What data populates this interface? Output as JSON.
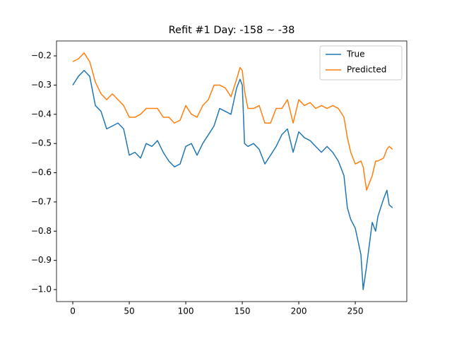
{
  "chart_data": {
    "type": "line",
    "title": "Refit #1 Day: -158 ~ -38",
    "x": [
      0,
      5,
      10,
      15,
      20,
      25,
      30,
      35,
      40,
      45,
      50,
      55,
      60,
      65,
      70,
      75,
      80,
      85,
      90,
      95,
      100,
      105,
      110,
      115,
      120,
      125,
      130,
      135,
      140,
      145,
      148,
      150,
      152,
      155,
      160,
      165,
      170,
      175,
      180,
      185,
      190,
      195,
      200,
      205,
      210,
      215,
      220,
      225,
      230,
      235,
      240,
      243,
      246,
      250,
      255,
      257,
      260,
      265,
      268,
      270,
      275,
      278,
      280,
      283
    ],
    "series": [
      {
        "name": "True",
        "color": "#1f77b4",
        "values": [
          -0.3,
          -0.27,
          -0.25,
          -0.27,
          -0.37,
          -0.39,
          -0.45,
          -0.44,
          -0.43,
          -0.45,
          -0.54,
          -0.53,
          -0.55,
          -0.5,
          -0.51,
          -0.49,
          -0.53,
          -0.56,
          -0.58,
          -0.57,
          -0.51,
          -0.5,
          -0.54,
          -0.5,
          -0.47,
          -0.44,
          -0.38,
          -0.39,
          -0.4,
          -0.31,
          -0.28,
          -0.3,
          -0.5,
          -0.51,
          -0.5,
          -0.52,
          -0.57,
          -0.54,
          -0.51,
          -0.47,
          -0.45,
          -0.53,
          -0.46,
          -0.48,
          -0.49,
          -0.51,
          -0.53,
          -0.51,
          -0.53,
          -0.56,
          -0.61,
          -0.72,
          -0.76,
          -0.79,
          -0.88,
          -1.0,
          -0.92,
          -0.77,
          -0.8,
          -0.75,
          -0.69,
          -0.66,
          -0.71,
          -0.72
        ]
      },
      {
        "name": "Predicted",
        "color": "#ff7f0e",
        "values": [
          -0.22,
          -0.21,
          -0.19,
          -0.22,
          -0.29,
          -0.33,
          -0.35,
          -0.33,
          -0.35,
          -0.37,
          -0.41,
          -0.41,
          -0.4,
          -0.38,
          -0.38,
          -0.38,
          -0.41,
          -0.41,
          -0.43,
          -0.42,
          -0.37,
          -0.4,
          -0.41,
          -0.37,
          -0.35,
          -0.3,
          -0.3,
          -0.31,
          -0.34,
          -0.28,
          -0.24,
          -0.25,
          -0.32,
          -0.38,
          -0.38,
          -0.37,
          -0.43,
          -0.43,
          -0.38,
          -0.38,
          -0.35,
          -0.43,
          -0.35,
          -0.37,
          -0.36,
          -0.38,
          -0.37,
          -0.38,
          -0.37,
          -0.38,
          -0.41,
          -0.48,
          -0.53,
          -0.57,
          -0.56,
          -0.58,
          -0.66,
          -0.61,
          -0.56,
          -0.56,
          -0.55,
          -0.52,
          -0.51,
          -0.52
        ]
      }
    ],
    "xlim": [
      -14.4,
      295.6
    ],
    "xticks": [
      0,
      50,
      100,
      150,
      200,
      250
    ],
    "ylim": [
      -1.041,
      -0.149
    ],
    "yticks": [
      {
        "value": -1.0,
        "label": "−1.0"
      },
      {
        "value": -0.9,
        "label": "−0.9"
      },
      {
        "value": -0.8,
        "label": "−0.8"
      },
      {
        "value": -0.7,
        "label": "−0.7"
      },
      {
        "value": -0.6,
        "label": "−0.6"
      },
      {
        "value": -0.5,
        "label": "−0.5"
      },
      {
        "value": -0.4,
        "label": "−0.4"
      },
      {
        "value": -0.3,
        "label": "−0.3"
      },
      {
        "value": -0.2,
        "label": "−0.2"
      }
    ],
    "legend": "upper right"
  }
}
